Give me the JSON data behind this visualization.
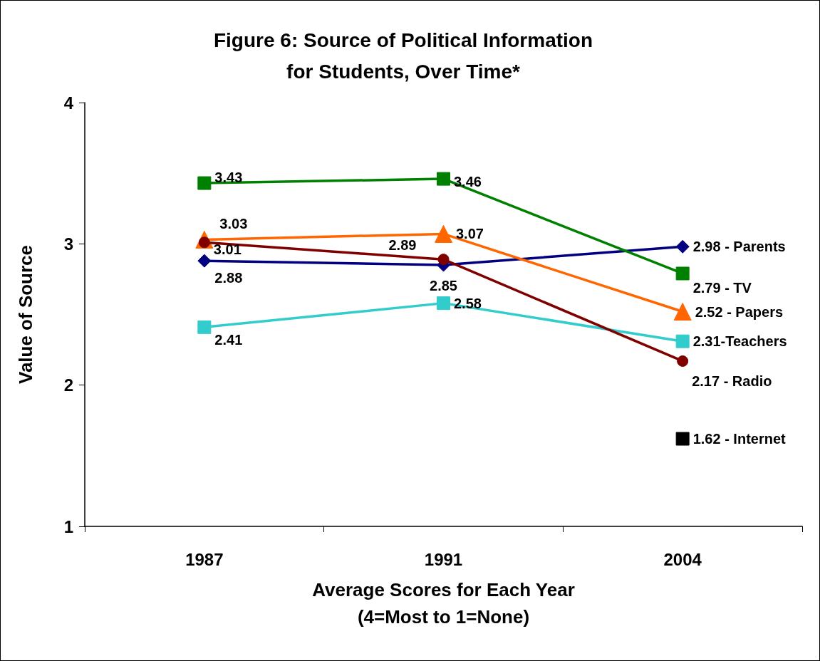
{
  "chart_data": {
    "type": "line",
    "title": "Figure 6: Source of Political Information\nfor Students, Over Time*",
    "xlabel": "Average Scores for Each Year\n(4=Most to 1=None)",
    "ylabel": "Value of Source",
    "categories": [
      "1987",
      "1991",
      "2004"
    ],
    "ylim": [
      1,
      4
    ],
    "yticks": [
      1,
      2,
      3,
      4
    ],
    "grid": false,
    "series": [
      {
        "color": "#000080",
        "marker": "diamond",
        "values": [
          2.88,
          2.85,
          2.98
        ],
        "value_labels": [
          "2.88",
          "2.85",
          "2.98 - Parents"
        ]
      },
      {
        "color": "#008000",
        "marker": "square",
        "values": [
          3.43,
          3.46,
          2.79
        ],
        "value_labels": [
          "3.43",
          "3.46",
          "2.79 - TV"
        ]
      },
      {
        "color": "#ff6600",
        "marker": "triangle",
        "values": [
          3.03,
          3.07,
          2.52
        ],
        "value_labels": [
          "3.03",
          "3.07",
          "2.52 - Papers"
        ]
      },
      {
        "color": "#33cccc",
        "marker": "square",
        "values": [
          2.41,
          2.58,
          2.31
        ],
        "value_labels": [
          "2.41",
          "2.58",
          "2.31-Teachers"
        ]
      },
      {
        "color": "#800000",
        "marker": "circle",
        "values": [
          3.01,
          2.89,
          2.17
        ],
        "value_labels": [
          "3.01",
          "2.89",
          "2.17 - Radio"
        ]
      },
      {
        "color": "#000000",
        "marker": "square",
        "values": [
          null,
          null,
          1.62
        ],
        "value_labels": [
          null,
          null,
          "1.62 - Internet"
        ]
      }
    ]
  }
}
